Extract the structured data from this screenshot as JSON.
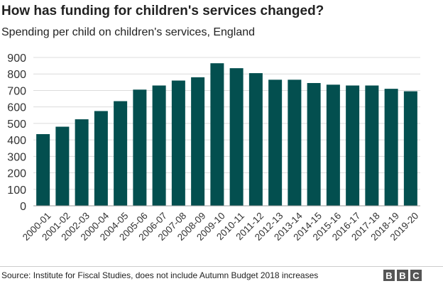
{
  "chart_data": {
    "type": "bar",
    "title": "How has funding for children's services changed?",
    "subtitle": "Spending per child on children's services, England",
    "categories": [
      "2000-01",
      "2001-02",
      "2002-03",
      "2000-04",
      "2004-05",
      "2005-06",
      "2006-07",
      "2007-08",
      "2008-09",
      "2009-10",
      "2010-11",
      "2011-12",
      "2012-13",
      "2013-14",
      "2014-15",
      "2015-16",
      "2016-17",
      "2017-18",
      "2018-19",
      "2019-20"
    ],
    "values": [
      435,
      480,
      525,
      575,
      635,
      705,
      730,
      760,
      780,
      865,
      835,
      805,
      765,
      765,
      745,
      735,
      730,
      730,
      710,
      695
    ],
    "ylim": [
      0,
      900
    ],
    "yticks": [
      0,
      100,
      200,
      300,
      400,
      500,
      600,
      700,
      800,
      900
    ],
    "grid": true,
    "bar_color": "#034f4f",
    "xlabel": "",
    "ylabel": ""
  },
  "footer": {
    "source": "Source: Institute for Fiscal Studies, does not include Autumn Budget 2018 increases",
    "logo": [
      "B",
      "B",
      "C"
    ]
  }
}
